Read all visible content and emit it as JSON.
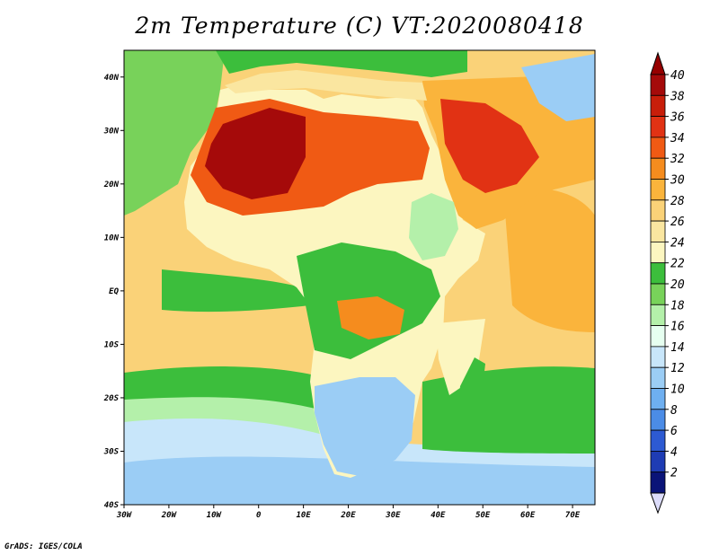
{
  "title": "2m Temperature (C) VT:2020080418",
  "footer": "GrADS: IGES/COLA",
  "map": {
    "lon_range": [
      -30,
      75
    ],
    "lat_range": [
      -40,
      45
    ],
    "lon_ticks": [
      {
        "v": -30,
        "label": "30W"
      },
      {
        "v": -20,
        "label": "20W"
      },
      {
        "v": -10,
        "label": "10W"
      },
      {
        "v": 0,
        "label": "0"
      },
      {
        "v": 10,
        "label": "10E"
      },
      {
        "v": 20,
        "label": "20E"
      },
      {
        "v": 30,
        "label": "30E"
      },
      {
        "v": 40,
        "label": "40E"
      },
      {
        "v": 50,
        "label": "50E"
      },
      {
        "v": 60,
        "label": "60E"
      },
      {
        "v": 70,
        "label": "70E"
      }
    ],
    "lat_ticks": [
      {
        "v": 40,
        "label": "40N"
      },
      {
        "v": 30,
        "label": "30N"
      },
      {
        "v": 20,
        "label": "20N"
      },
      {
        "v": 10,
        "label": "10N"
      },
      {
        "v": 0,
        "label": "EQ"
      },
      {
        "v": -10,
        "label": "10S"
      },
      {
        "v": -20,
        "label": "20S"
      },
      {
        "v": -30,
        "label": "30S"
      },
      {
        "v": -40,
        "label": "40S"
      }
    ]
  },
  "colorbar": {
    "labels": [
      "40",
      "38",
      "36",
      "34",
      "32",
      "30",
      "28",
      "26",
      "24",
      "22",
      "20",
      "18",
      "16",
      "14",
      "12",
      "10",
      "8",
      "6",
      "4",
      "2"
    ],
    "colors": [
      "#a50a0a",
      "#c81e0a",
      "#e13214",
      "#f05a14",
      "#f58c1e",
      "#fab43c",
      "#fad278",
      "#fae6a0",
      "#fcf6c0",
      "#3cbe3c",
      "#78d25a",
      "#b4f0aa",
      "#e6fff0",
      "#c8e6fa",
      "#9bcdf5",
      "#6eaff0",
      "#4b8ce6",
      "#2d5ad2",
      "#1e3cb4",
      "#0a1478"
    ],
    "over_color": "#960000",
    "under_color": "#dcdcfa"
  },
  "regions": [
    {
      "name": "ocean-base",
      "color": "#fad278"
    },
    {
      "name": "north-atlantic",
      "color": "#78d25a"
    },
    {
      "name": "gulf-of-guinea",
      "color": "#3cbe3c"
    },
    {
      "name": "south-atlantic-green",
      "color": "#3cbe3c"
    },
    {
      "name": "south-atlantic-cool",
      "color": "#b4f0aa"
    },
    {
      "name": "south-atlantic-cold",
      "color": "#c8e6fa"
    },
    {
      "name": "southern-ocean",
      "color": "#9bcdf5"
    },
    {
      "name": "indian-ocean-green",
      "color": "#3cbe3c"
    },
    {
      "name": "mozambique-channel",
      "color": "#fcf6c0"
    },
    {
      "name": "west-indian-ocean-warm",
      "color": "#fab43c"
    },
    {
      "name": "africa-land",
      "color": "#fcf6c0"
    },
    {
      "name": "arabia-land",
      "color": "#fab43c"
    },
    {
      "name": "southern-africa-cold",
      "color": "#9bcdf5"
    },
    {
      "name": "sahara-hot",
      "color": "#f05a14"
    },
    {
      "name": "west-sahara-core",
      "color": "#a50a0a"
    },
    {
      "name": "arabia-hot",
      "color": "#e13214"
    },
    {
      "name": "ethiopian-highlands",
      "color": "#b4f0aa"
    },
    {
      "name": "central-africa-forest",
      "color": "#3cbe3c"
    },
    {
      "name": "congo-hot",
      "color": "#f58c1e"
    },
    {
      "name": "madagascar",
      "color": "#3cbe3c"
    },
    {
      "name": "mediterranean",
      "color": "#fae6a0"
    },
    {
      "name": "europe-land",
      "color": "#3cbe3c"
    },
    {
      "name": "iran-highlands",
      "color": "#9bcdf5"
    }
  ]
}
